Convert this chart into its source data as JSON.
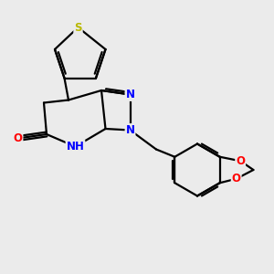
{
  "background_color": "#ebebeb",
  "bond_color": "#000000",
  "bond_width": 1.6,
  "atom_colors": {
    "S": "#b8b800",
    "N": "#0000ff",
    "O": "#ff0000",
    "C": "#000000",
    "H": "#008080"
  },
  "font_size": 8.5,
  "figsize": [
    3.0,
    3.0
  ],
  "dpi": 100
}
